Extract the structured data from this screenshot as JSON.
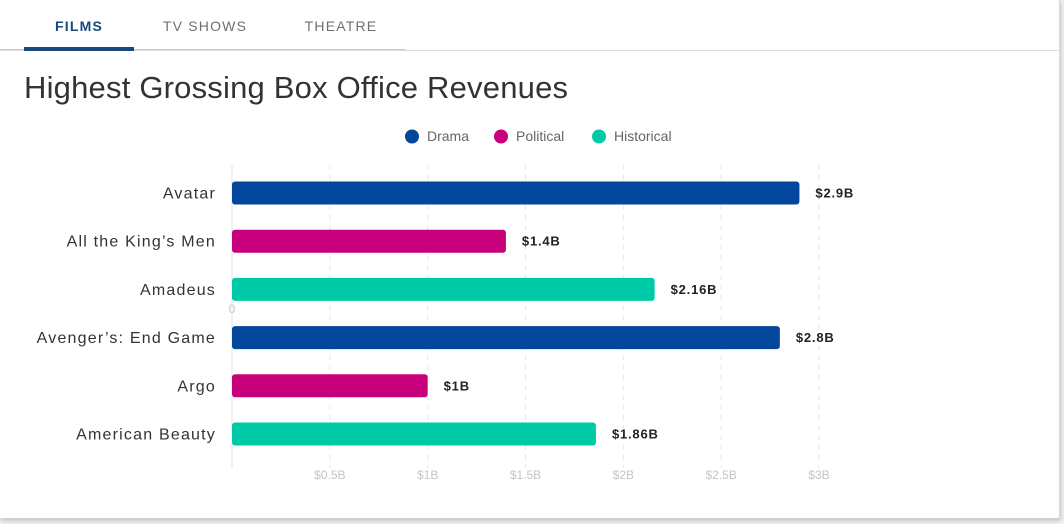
{
  "tabs": [
    {
      "label": "FILMS",
      "active": true
    },
    {
      "label": "TV SHOWS",
      "active": false
    },
    {
      "label": "THEATRE",
      "active": false
    }
  ],
  "chart_data": {
    "type": "bar",
    "orientation": "horizontal",
    "title": "Highest Grossing Box Office Revenues",
    "legend": {
      "placement": "top-center",
      "entries": [
        {
          "name": "Drama",
          "color": "#03479c"
        },
        {
          "name": "Political",
          "color": "#c8007c"
        },
        {
          "name": "Historical",
          "color": "#00c9a7"
        }
      ]
    },
    "categories": [
      "Avatar",
      "All the King’s Men",
      "Amadeus",
      "Avenger’s: End Game",
      "Argo",
      "American Beauty"
    ],
    "values": [
      2.9,
      1.4,
      2.16,
      2.8,
      1.0,
      1.86
    ],
    "value_labels": [
      "$2.9B",
      "$1.4B",
      "$2.16B",
      "$2.8B",
      "$1B",
      "$1.86B"
    ],
    "genres": [
      "Drama",
      "Political",
      "Historical",
      "Drama",
      "Political",
      "Historical"
    ],
    "xlim": [
      0,
      3
    ],
    "x_ticks": [
      0.5,
      1,
      1.5,
      2,
      2.5,
      3
    ],
    "x_tick_labels": [
      "$0.5B",
      "$1B",
      "$1.5B",
      "$2B",
      "$2.5B",
      "$3B"
    ],
    "origin_label": "0",
    "grid": true,
    "xlabel": "",
    "ylabel": ""
  }
}
